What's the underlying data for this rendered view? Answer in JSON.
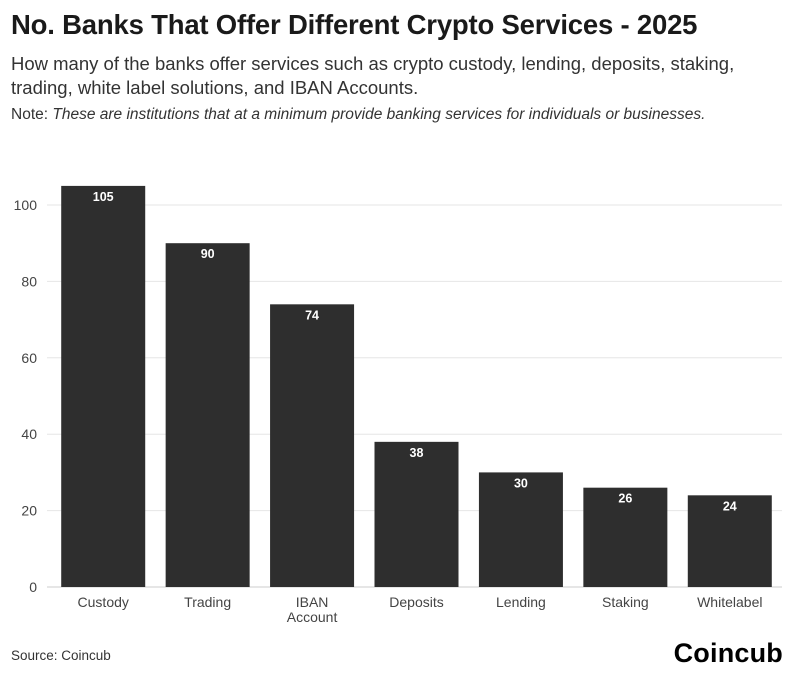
{
  "header": {
    "title": "No. Banks That Offer Different Crypto Services - 2025",
    "subtitle": "How many of the banks offer services such as crypto custody, lending, deposits, staking, trading, white label solutions, and IBAN Accounts.",
    "note_label": "Note: ",
    "note_text": "These are institutions that at a minimum provide banking services for individuals or businesses."
  },
  "footer": {
    "source": "Source: Coincub",
    "brand": "Coincub"
  },
  "colors": {
    "bar": "#2e2e2e",
    "grid": "#e6e6e6",
    "axis": "#cccccc"
  },
  "chart_data": {
    "type": "bar",
    "categories": [
      [
        "Custody"
      ],
      [
        "Trading"
      ],
      [
        "IBAN",
        "Account"
      ],
      [
        "Deposits"
      ],
      [
        "Lending"
      ],
      [
        "Staking"
      ],
      [
        "Whitelabel"
      ]
    ],
    "values": [
      105,
      90,
      74,
      38,
      30,
      26,
      24
    ],
    "ylim": [
      0,
      110
    ],
    "yticks": [
      0,
      20,
      40,
      60,
      80,
      100
    ],
    "grid": true,
    "legend": "none",
    "xlabel": "",
    "ylabel": ""
  }
}
